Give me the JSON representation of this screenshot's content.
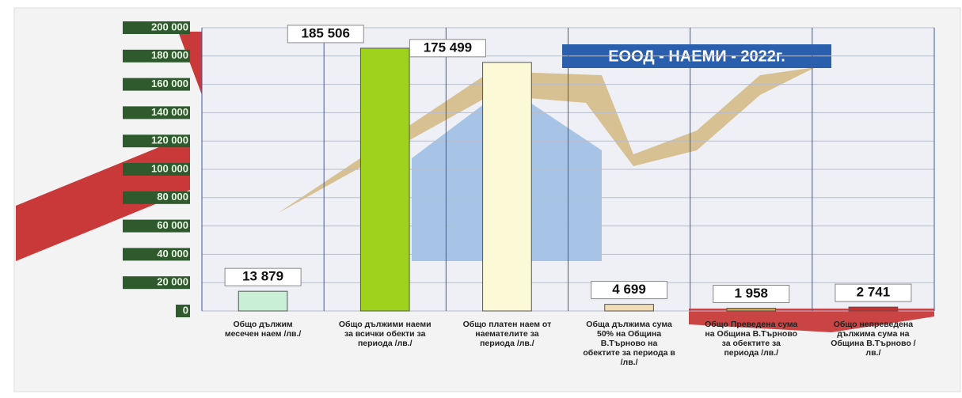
{
  "chart_data": {
    "type": "bar",
    "title": "ЕООД - НАЕМИ - 2022г.",
    "categories": [
      "Общо дължим месечен наем /лв./",
      "Общо дължими наеми за всички обекти за периода /лв./",
      "Общо платен наем от наемателите за периода /лв./",
      "Обща дължима сума 50% на Община В.Търново на обектите за периода в /лв./",
      "Общо Преведена сума на Община В.Търново за обектите за периода /лв./",
      "Общо непреведена дължима сума на Община В.Търново /лв./"
    ],
    "values": [
      13879,
      185506,
      175499,
      4699,
      1958,
      2741
    ],
    "value_labels": [
      "13 879",
      "185 506",
      "175 499",
      "4 699",
      "1 958",
      "2 741"
    ],
    "colors": [
      "#c9efd6",
      "#9fd21c",
      "#fbf9d6",
      "#f2dcb4",
      "#c9a35a",
      "#d22a2a"
    ],
    "ylim": [
      0,
      200000
    ],
    "yticks": [
      0,
      {
        "value": 20000,
        "label": "20 000"
      },
      {
        "value": 40000,
        "label": "40 000"
      },
      {
        "value": 60000,
        "label": "60 000"
      },
      {
        "value": 80000,
        "label": "80 000"
      },
      {
        "value": 100000,
        "label": "100 000"
      },
      {
        "value": 120000,
        "label": "120 000"
      },
      {
        "value": 140000,
        "label": "140 000"
      },
      {
        "value": 160000,
        "label": "160 000"
      },
      {
        "value": 180000,
        "label": "180 000"
      },
      {
        "value": 200000,
        "label": "200 000"
      }
    ],
    "grid": true
  }
}
